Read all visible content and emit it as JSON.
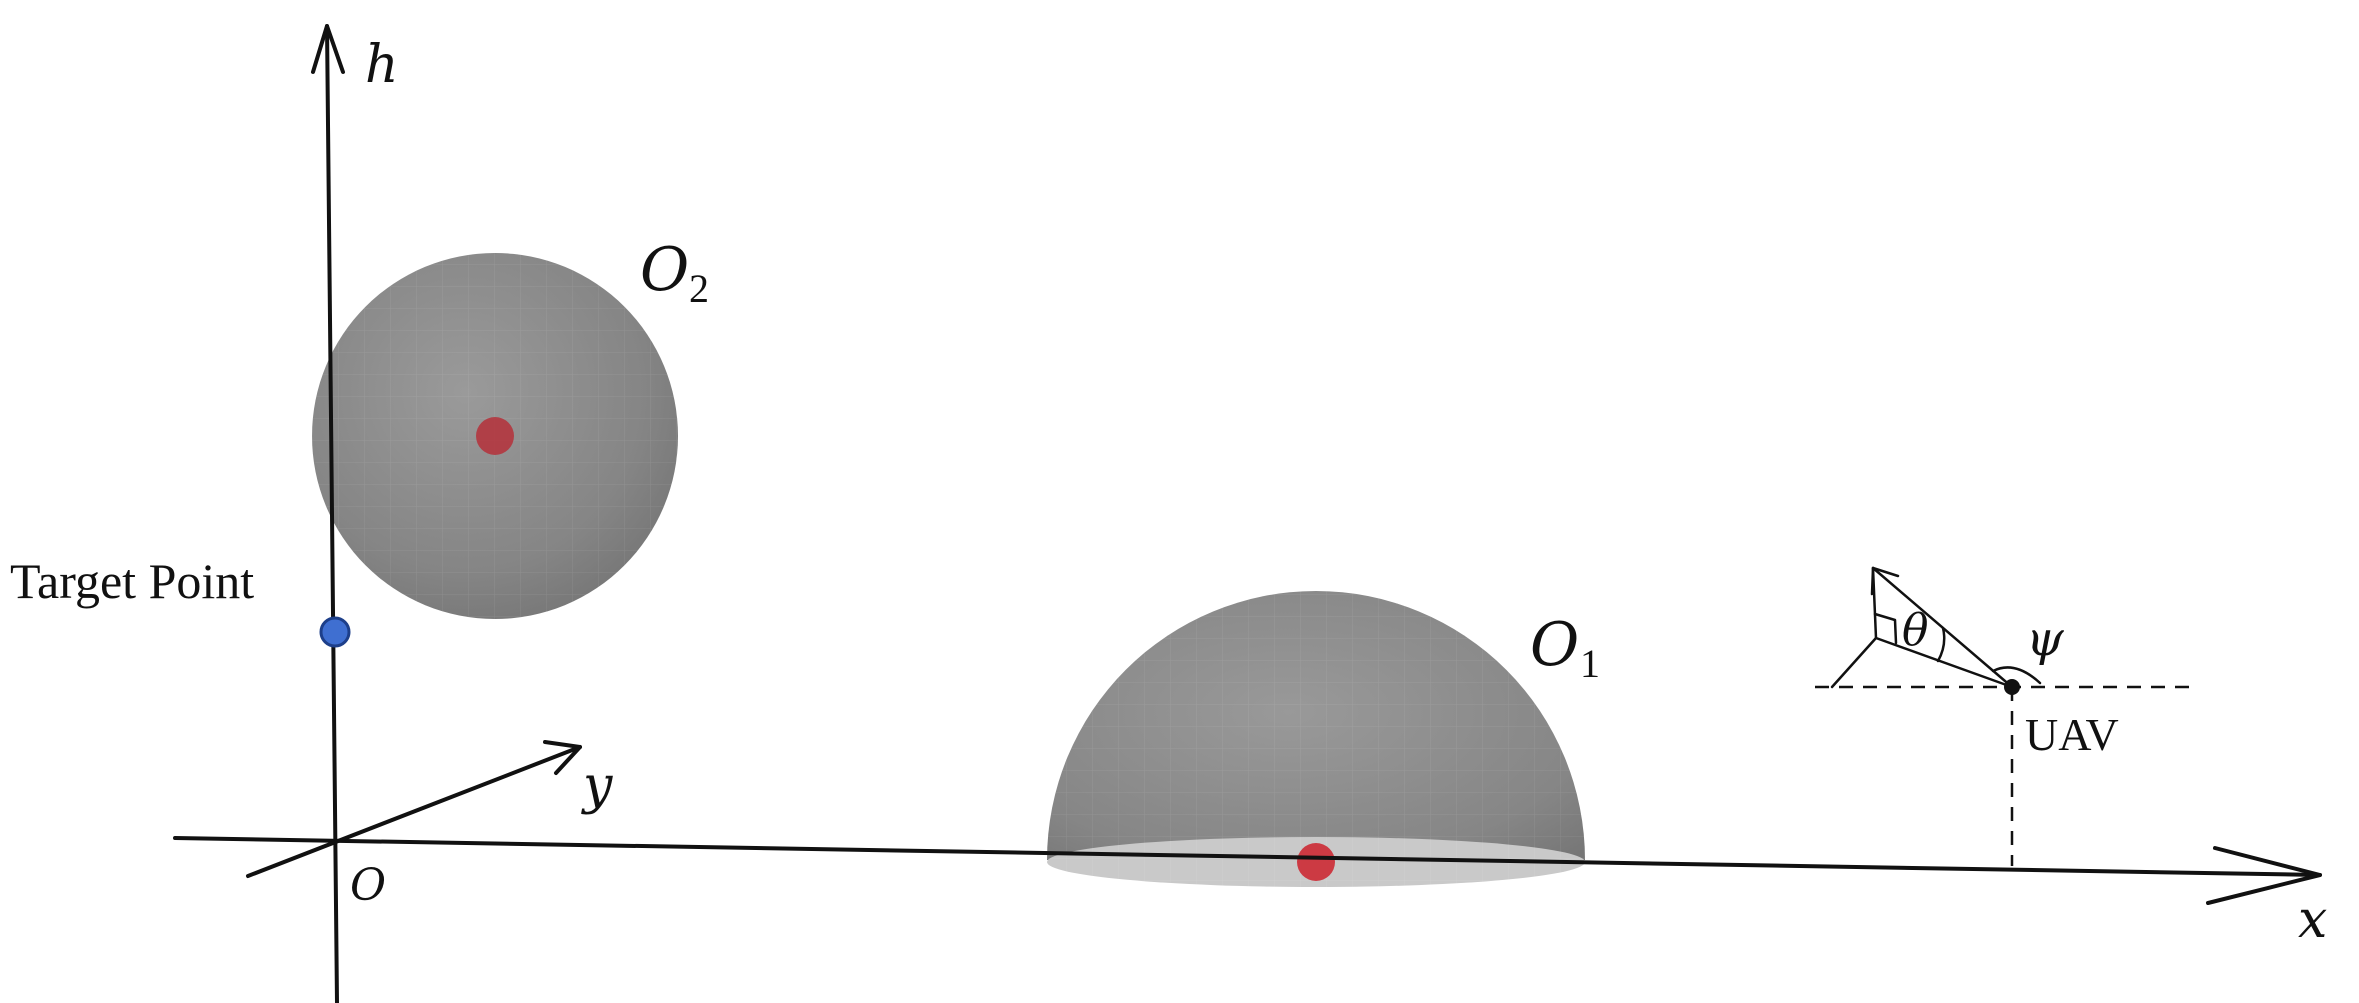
{
  "axes": {
    "h": "h",
    "x": "x",
    "y": "y",
    "origin": "O"
  },
  "obstacles": {
    "o1": {
      "label_main": "O",
      "label_sub": "1",
      "shape": "hemisphere"
    },
    "o2": {
      "label_main": "O",
      "label_sub": "2",
      "shape": "sphere"
    }
  },
  "target": {
    "label": "Target Point"
  },
  "uav": {
    "label": "UAV",
    "theta": "θ",
    "psi": "ψ"
  },
  "colors": {
    "sphere": "#8a8a8a",
    "center_marker": "#b5303a",
    "target_marker": "#3f6fd1"
  }
}
